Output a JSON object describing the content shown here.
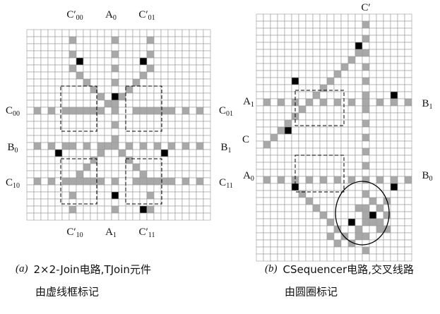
{
  "left": {
    "labels": [
      {
        "base": "C′",
        "sub": "00"
      },
      {
        "base": "A",
        "sub": "0"
      },
      {
        "base": "C′",
        "sub": "01"
      },
      {
        "base": "C",
        "sub": "00"
      },
      {
        "base": "C",
        "sub": "01"
      },
      {
        "base": "B",
        "sub": "0"
      },
      {
        "base": "B",
        "sub": "1"
      },
      {
        "base": "C",
        "sub": "10"
      },
      {
        "base": "C",
        "sub": "11"
      },
      {
        "base": "C′",
        "sub": "10"
      },
      {
        "base": "A",
        "sub": "1"
      },
      {
        "base": "C′",
        "sub": "11"
      }
    ],
    "caption": {
      "tag": "(a)",
      "line1": "2×2-Join电路,TJoin元件",
      "line2": "由虚线框标记"
    }
  },
  "right": {
    "labels": [
      {
        "base": "C′",
        "sub": ""
      },
      {
        "base": "A",
        "sub": "1"
      },
      {
        "base": "B",
        "sub": "1"
      },
      {
        "base": "C",
        "sub": ""
      },
      {
        "base": "A",
        "sub": "0"
      },
      {
        "base": "B",
        "sub": "0"
      }
    ],
    "caption": {
      "tag": "(b)",
      "line1": "CSequencer电路,交叉线路",
      "line2": "由圆圈标记"
    }
  }
}
